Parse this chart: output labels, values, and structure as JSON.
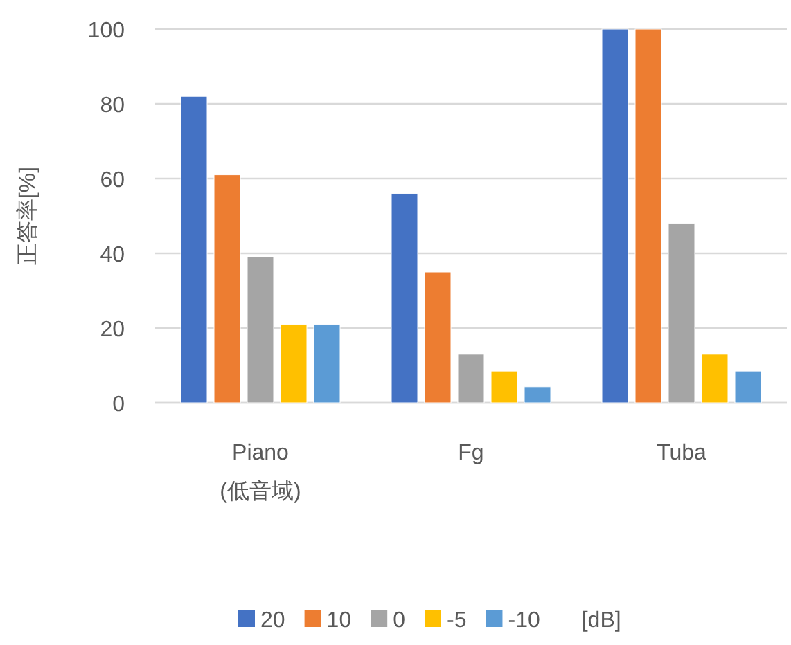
{
  "chart_data": {
    "type": "bar",
    "ylabel": "正答率[%]",
    "legend_title": "[dB]",
    "legend": "bottom",
    "grid": "y",
    "categories": [
      "Piano\n(低音域)",
      "Fg",
      "Tuba"
    ],
    "ylim": [
      0,
      100
    ],
    "yticks": [
      0,
      20,
      40,
      60,
      80,
      100
    ],
    "series": [
      {
        "name": "20",
        "color": "#4472c4",
        "values": [
          82,
          56,
          100
        ]
      },
      {
        "name": "10",
        "color": "#ed7d31",
        "values": [
          61,
          35,
          100
        ]
      },
      {
        "name": "0",
        "color": "#a5a5a5",
        "values": [
          39,
          13,
          48
        ]
      },
      {
        "name": "-5",
        "color": "#ffc000",
        "values": [
          21,
          8.5,
          13
        ]
      },
      {
        "name": "-10",
        "color": "#5b9bd5",
        "values": [
          21,
          4.3,
          8.5
        ]
      }
    ]
  }
}
